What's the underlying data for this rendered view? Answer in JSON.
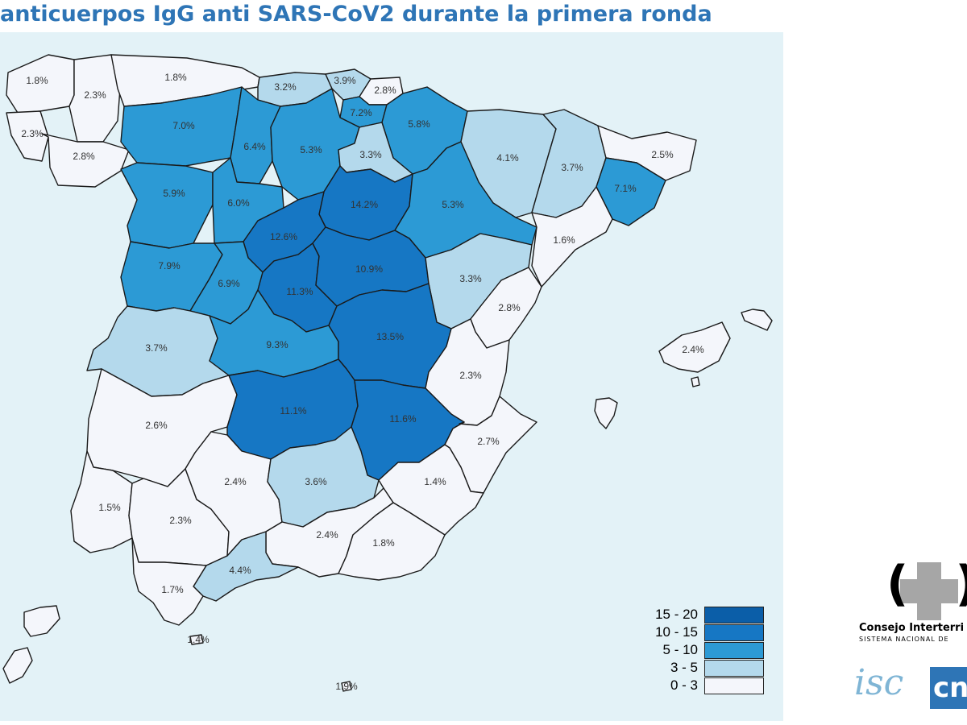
{
  "title": "anticuerpos IgG anti SARS-CoV2 durante la primera ronda",
  "colors": {
    "bin_0_3": "#f4f6fb",
    "bin_3_5": "#b4d9ec",
    "bin_5_10": "#2c9ad5",
    "bin_10_15": "#1677c4",
    "bin_15_20": "#0b5ea8",
    "sea": "#e3f2f7"
  },
  "legend": [
    {
      "label": "15 - 20",
      "color": "#0b5ea8"
    },
    {
      "label": "10 - 15",
      "color": "#1677c4"
    },
    {
      "label": "5 - 10",
      "color": "#2c9ad5"
    },
    {
      "label": "3 - 5",
      "color": "#b4d9ec"
    },
    {
      "label": "0 - 3",
      "color": "#f4f6fb"
    }
  ],
  "provinces": [
    {
      "id": "a-coruna",
      "label": "1.8%",
      "value": 1.8
    },
    {
      "id": "lugo",
      "label": "2.3%",
      "value": 2.3
    },
    {
      "id": "pontevedra",
      "label": "2.3%",
      "value": 2.3
    },
    {
      "id": "ourense",
      "label": "2.8%",
      "value": 2.8
    },
    {
      "id": "asturias",
      "label": "1.8%",
      "value": 1.8
    },
    {
      "id": "cantabria",
      "label": "3.2%",
      "value": 3.2
    },
    {
      "id": "bizkaia",
      "label": "3.9%",
      "value": 3.9
    },
    {
      "id": "gipuzkoa",
      "label": "2.8%",
      "value": 2.8
    },
    {
      "id": "araba",
      "label": "7.2%",
      "value": 7.2
    },
    {
      "id": "navarra",
      "label": "5.8%",
      "value": 5.8
    },
    {
      "id": "leon",
      "label": "7.0%",
      "value": 7.0
    },
    {
      "id": "palencia",
      "label": "6.4%",
      "value": 6.4
    },
    {
      "id": "burgos",
      "label": "5.3%",
      "value": 5.3
    },
    {
      "id": "la-rioja",
      "label": "3.3%",
      "value": 3.3
    },
    {
      "id": "huesca",
      "label": "4.1%",
      "value": 4.1
    },
    {
      "id": "lleida",
      "label": "3.7%",
      "value": 3.7
    },
    {
      "id": "girona",
      "label": "2.5%",
      "value": 2.5
    },
    {
      "id": "barcelona",
      "label": "7.1%",
      "value": 7.1
    },
    {
      "id": "zamora",
      "label": "5.9%",
      "value": 5.9
    },
    {
      "id": "valladolid",
      "label": "6.0%",
      "value": 6.0
    },
    {
      "id": "soria",
      "label": "14.2%",
      "value": 14.2
    },
    {
      "id": "zaragoza",
      "label": "5.3%",
      "value": 5.3
    },
    {
      "id": "tarragona",
      "label": "1.6%",
      "value": 1.6
    },
    {
      "id": "segovia",
      "label": "12.6%",
      "value": 12.6
    },
    {
      "id": "salamanca",
      "label": "7.9%",
      "value": 7.9
    },
    {
      "id": "avila",
      "label": "6.9%",
      "value": 6.9
    },
    {
      "id": "madrid",
      "label": "11.3%",
      "value": 11.3
    },
    {
      "id": "guadalajara",
      "label": "10.9%",
      "value": 10.9
    },
    {
      "id": "teruel",
      "label": "3.3%",
      "value": 3.3
    },
    {
      "id": "castellon",
      "label": "2.8%",
      "value": 2.8
    },
    {
      "id": "caceres",
      "label": "3.7%",
      "value": 3.7
    },
    {
      "id": "toledo",
      "label": "9.3%",
      "value": 9.3
    },
    {
      "id": "cuenca",
      "label": "13.5%",
      "value": 13.5
    },
    {
      "id": "valencia",
      "label": "2.3%",
      "value": 2.3
    },
    {
      "id": "badajoz",
      "label": "2.6%",
      "value": 2.6
    },
    {
      "id": "ciudad-real",
      "label": "11.1%",
      "value": 11.1
    },
    {
      "id": "albacete",
      "label": "11.6%",
      "value": 11.6
    },
    {
      "id": "alicante",
      "label": "2.7%",
      "value": 2.7
    },
    {
      "id": "huelva",
      "label": "1.5%",
      "value": 1.5
    },
    {
      "id": "sevilla",
      "label": "2.3%",
      "value": 2.3
    },
    {
      "id": "cordoba",
      "label": "2.4%",
      "value": 2.4
    },
    {
      "id": "jaen",
      "label": "3.6%",
      "value": 3.6
    },
    {
      "id": "murcia",
      "label": "1.4%",
      "value": 1.4
    },
    {
      "id": "granada",
      "label": "2.4%",
      "value": 2.4
    },
    {
      "id": "almeria",
      "label": "1.8%",
      "value": 1.8
    },
    {
      "id": "malaga",
      "label": "4.4%",
      "value": 4.4
    },
    {
      "id": "cadiz",
      "label": "1.7%",
      "value": 1.7
    },
    {
      "id": "ceuta",
      "label": "1.4%",
      "value": 1.4
    },
    {
      "id": "melilla",
      "label": "1.9%",
      "value": 1.9
    },
    {
      "id": "baleares",
      "label": "2.4%",
      "value": 2.4
    }
  ],
  "logo": {
    "name": "Consejo Interterri",
    "subtitle": "SISTEMA NACIONAL DE",
    "parens": "()",
    "isc_text": "isc",
    "cnm_text": "cn"
  }
}
